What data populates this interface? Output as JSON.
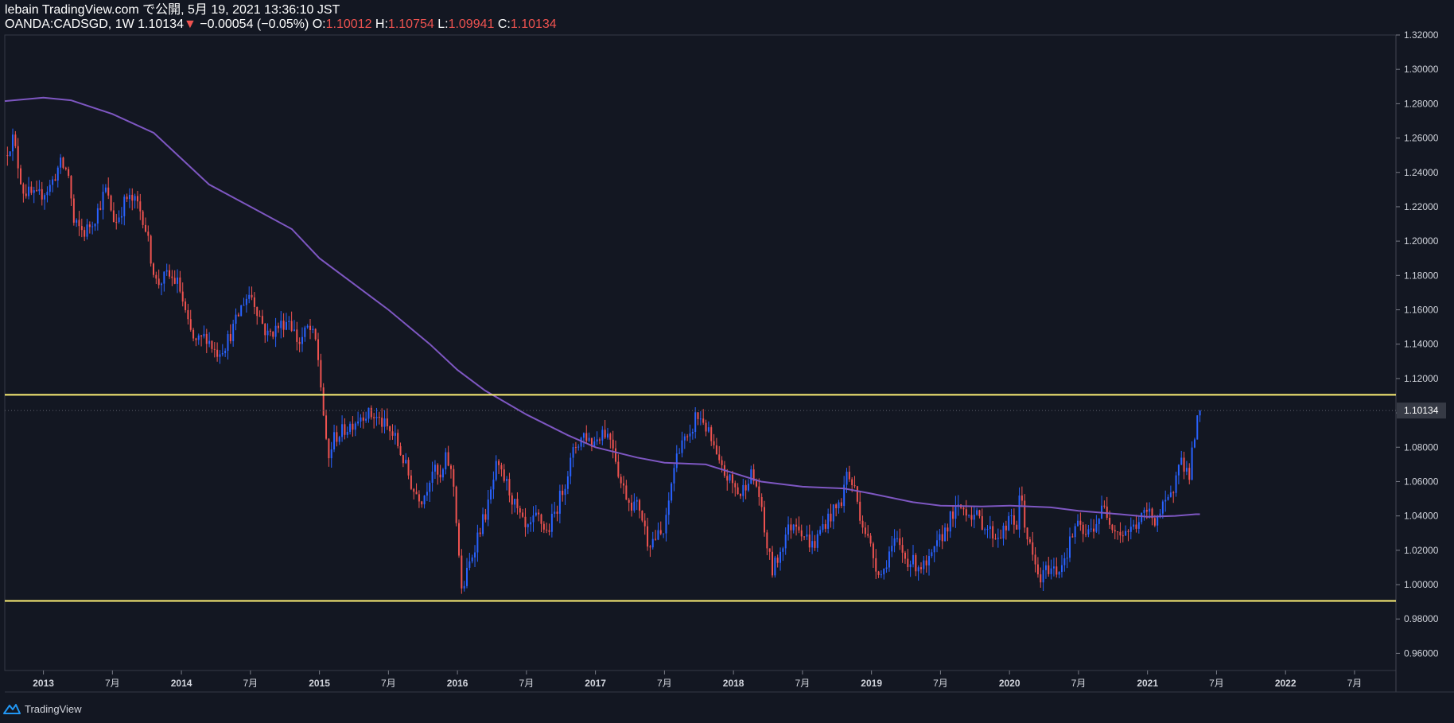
{
  "header": {
    "publisher": "lebain TradingView.com で公開, 5月 19, 2021 13:36:10 JST",
    "symbol": "OANDA:CADSGD, 1W",
    "last": "1.10134",
    "change_arrow": "▼",
    "change": "−0.00054 (−0.05%)",
    "o_label": "O:",
    "o_value": "1.10012",
    "h_label": "H:",
    "h_value": "1.10754",
    "l_label": "L:",
    "l_value": "1.09941",
    "c_label": "C:",
    "c_value": "1.10134"
  },
  "footer": {
    "brand": "TradingView"
  },
  "colors": {
    "background": "#131722",
    "up": "#2962ff",
    "down": "#ef5350",
    "ma": "#7e57c2",
    "level": "#fff176",
    "axis": "#363a45",
    "text": "#d1d4dc"
  },
  "chart_data": {
    "type": "candlestick",
    "symbol": "OANDA:CADSGD",
    "interval": "1W",
    "y_axis": {
      "min": 0.95,
      "max": 1.32,
      "position": "right",
      "ticks": [
        "0.96000",
        "0.98000",
        "1.00000",
        "1.02000",
        "1.04000",
        "1.06000",
        "1.08000",
        "1.10000",
        "1.12000",
        "1.14000",
        "1.16000",
        "1.18000",
        "1.20000",
        "1.22000",
        "1.24000",
        "1.26000",
        "1.28000",
        "1.30000",
        "1.32000"
      ],
      "last_price_label": "1.10134"
    },
    "x_axis": {
      "min": 2012.72,
      "max": 2022.8,
      "ticks": [
        {
          "t": 2013.0,
          "label": "2013"
        },
        {
          "t": 2013.5,
          "label": "7月"
        },
        {
          "t": 2014.0,
          "label": "2014"
        },
        {
          "t": 2014.5,
          "label": "7月"
        },
        {
          "t": 2015.0,
          "label": "2015"
        },
        {
          "t": 2015.5,
          "label": "7月"
        },
        {
          "t": 2016.0,
          "label": "2016"
        },
        {
          "t": 2016.5,
          "label": "7月"
        },
        {
          "t": 2017.0,
          "label": "2017"
        },
        {
          "t": 2017.5,
          "label": "7月"
        },
        {
          "t": 2018.0,
          "label": "2018"
        },
        {
          "t": 2018.5,
          "label": "7月"
        },
        {
          "t": 2019.0,
          "label": "2019"
        },
        {
          "t": 2019.5,
          "label": "7月"
        },
        {
          "t": 2020.0,
          "label": "2020"
        },
        {
          "t": 2020.5,
          "label": "7月"
        },
        {
          "t": 2021.0,
          "label": "2021"
        },
        {
          "t": 2021.5,
          "label": "7月"
        },
        {
          "t": 2022.0,
          "label": "2022"
        },
        {
          "t": 2022.5,
          "label": "7月"
        }
      ]
    },
    "horizontal_levels": [
      1.1105,
      0.9905
    ],
    "price_path": [
      [
        2012.72,
        1.25
      ],
      [
        2012.78,
        1.26
      ],
      [
        2012.85,
        1.23
      ],
      [
        2012.95,
        1.225
      ],
      [
        2013.05,
        1.232
      ],
      [
        2013.12,
        1.245
      ],
      [
        2013.18,
        1.24
      ],
      [
        2013.22,
        1.21
      ],
      [
        2013.3,
        1.205
      ],
      [
        2013.38,
        1.215
      ],
      [
        2013.45,
        1.23
      ],
      [
        2013.52,
        1.21
      ],
      [
        2013.6,
        1.225
      ],
      [
        2013.68,
        1.222
      ],
      [
        2013.73,
        1.212
      ],
      [
        2013.78,
        1.19
      ],
      [
        2013.82,
        1.175
      ],
      [
        2013.9,
        1.18
      ],
      [
        2013.98,
        1.175
      ],
      [
        2014.05,
        1.15
      ],
      [
        2014.1,
        1.14
      ],
      [
        2014.18,
        1.145
      ],
      [
        2014.25,
        1.135
      ],
      [
        2014.32,
        1.14
      ],
      [
        2014.38,
        1.15
      ],
      [
        2014.45,
        1.165
      ],
      [
        2014.5,
        1.17
      ],
      [
        2014.55,
        1.16
      ],
      [
        2014.62,
        1.145
      ],
      [
        2014.7,
        1.15
      ],
      [
        2014.78,
        1.155
      ],
      [
        2014.85,
        1.14
      ],
      [
        2014.92,
        1.15
      ],
      [
        2014.98,
        1.14
      ],
      [
        2015.02,
        1.108
      ],
      [
        2015.06,
        1.07
      ],
      [
        2015.1,
        1.085
      ],
      [
        2015.18,
        1.09
      ],
      [
        2015.25,
        1.095
      ],
      [
        2015.32,
        1.1
      ],
      [
        2015.4,
        1.098
      ],
      [
        2015.48,
        1.092
      ],
      [
        2015.55,
        1.085
      ],
      [
        2015.62,
        1.07
      ],
      [
        2015.68,
        1.055
      ],
      [
        2015.75,
        1.05
      ],
      [
        2015.82,
        1.068
      ],
      [
        2015.88,
        1.06
      ],
      [
        2015.92,
        1.075
      ],
      [
        2015.97,
        1.06
      ],
      [
        2016.0,
        1.03
      ],
      [
        2016.03,
        0.995
      ],
      [
        2016.08,
        1.01
      ],
      [
        2016.15,
        1.03
      ],
      [
        2016.22,
        1.045
      ],
      [
        2016.28,
        1.068
      ],
      [
        2016.35,
        1.06
      ],
      [
        2016.42,
        1.045
      ],
      [
        2016.5,
        1.03
      ],
      [
        2016.58,
        1.04
      ],
      [
        2016.65,
        1.03
      ],
      [
        2016.72,
        1.045
      ],
      [
        2016.78,
        1.06
      ],
      [
        2016.85,
        1.08
      ],
      [
        2016.92,
        1.088
      ],
      [
        2016.98,
        1.082
      ],
      [
        2017.05,
        1.09
      ],
      [
        2017.12,
        1.085
      ],
      [
        2017.18,
        1.06
      ],
      [
        2017.25,
        1.048
      ],
      [
        2017.32,
        1.045
      ],
      [
        2017.38,
        1.025
      ],
      [
        2017.45,
        1.028
      ],
      [
        2017.5,
        1.03
      ],
      [
        2017.56,
        1.065
      ],
      [
        2017.62,
        1.085
      ],
      [
        2017.68,
        1.082
      ],
      [
        2017.72,
        1.098
      ],
      [
        2017.78,
        1.096
      ],
      [
        2017.84,
        1.083
      ],
      [
        2017.9,
        1.068
      ],
      [
        2017.98,
        1.06
      ],
      [
        2018.05,
        1.052
      ],
      [
        2018.12,
        1.065
      ],
      [
        2018.18,
        1.055
      ],
      [
        2018.22,
        1.032
      ],
      [
        2018.28,
        1.008
      ],
      [
        2018.32,
        1.015
      ],
      [
        2018.38,
        1.03
      ],
      [
        2018.45,
        1.038
      ],
      [
        2018.52,
        1.028
      ],
      [
        2018.58,
        1.022
      ],
      [
        2018.65,
        1.035
      ],
      [
        2018.72,
        1.042
      ],
      [
        2018.78,
        1.048
      ],
      [
        2018.82,
        1.065
      ],
      [
        2018.88,
        1.055
      ],
      [
        2018.92,
        1.04
      ],
      [
        2018.98,
        1.025
      ],
      [
        2019.03,
        1.012
      ],
      [
        2019.08,
        1.005
      ],
      [
        2019.12,
        1.018
      ],
      [
        2019.18,
        1.025
      ],
      [
        2019.25,
        1.015
      ],
      [
        2019.32,
        1.012
      ],
      [
        2019.4,
        1.01
      ],
      [
        2019.45,
        1.018
      ],
      [
        2019.52,
        1.03
      ],
      [
        2019.58,
        1.04
      ],
      [
        2019.65,
        1.045
      ],
      [
        2019.72,
        1.042
      ],
      [
        2019.78,
        1.038
      ],
      [
        2019.85,
        1.032
      ],
      [
        2019.9,
        1.028
      ],
      [
        2019.97,
        1.032
      ],
      [
        2020.02,
        1.04
      ],
      [
        2020.05,
        1.032
      ],
      [
        2020.08,
        1.055
      ],
      [
        2020.12,
        1.03
      ],
      [
        2020.18,
        1.012
      ],
      [
        2020.22,
        1.002
      ],
      [
        2020.28,
        1.01
      ],
      [
        2020.35,
        1.008
      ],
      [
        2020.42,
        1.02
      ],
      [
        2020.48,
        1.035
      ],
      [
        2020.55,
        1.028
      ],
      [
        2020.62,
        1.035
      ],
      [
        2020.68,
        1.045
      ],
      [
        2020.75,
        1.035
      ],
      [
        2020.8,
        1.03
      ],
      [
        2020.88,
        1.032
      ],
      [
        2020.95,
        1.038
      ],
      [
        2021.0,
        1.043
      ],
      [
        2021.05,
        1.038
      ],
      [
        2021.12,
        1.045
      ],
      [
        2021.18,
        1.052
      ],
      [
        2021.22,
        1.075
      ],
      [
        2021.26,
        1.07
      ],
      [
        2021.3,
        1.063
      ],
      [
        2021.33,
        1.08
      ],
      [
        2021.36,
        1.095
      ],
      [
        2021.38,
        1.101
      ]
    ],
    "moving_average": [
      [
        2012.72,
        1.2815
      ],
      [
        2013.0,
        1.2835
      ],
      [
        2013.2,
        1.282
      ],
      [
        2013.5,
        1.274
      ],
      [
        2013.8,
        1.263
      ],
      [
        2014.0,
        1.248
      ],
      [
        2014.2,
        1.233
      ],
      [
        2014.5,
        1.22
      ],
      [
        2014.8,
        1.207
      ],
      [
        2015.0,
        1.19
      ],
      [
        2015.3,
        1.172
      ],
      [
        2015.5,
        1.16
      ],
      [
        2015.8,
        1.14
      ],
      [
        2016.0,
        1.125
      ],
      [
        2016.2,
        1.113
      ],
      [
        2016.5,
        1.099
      ],
      [
        2016.8,
        1.087
      ],
      [
        2017.0,
        1.08
      ],
      [
        2017.3,
        1.074
      ],
      [
        2017.5,
        1.071
      ],
      [
        2017.8,
        1.07
      ],
      [
        2018.0,
        1.065
      ],
      [
        2018.2,
        1.06
      ],
      [
        2018.5,
        1.057
      ],
      [
        2018.8,
        1.056
      ],
      [
        2019.0,
        1.053
      ],
      [
        2019.3,
        1.048
      ],
      [
        2019.5,
        1.046
      ],
      [
        2019.8,
        1.0455
      ],
      [
        2020.0,
        1.046
      ],
      [
        2020.3,
        1.045
      ],
      [
        2020.5,
        1.043
      ],
      [
        2020.8,
        1.041
      ],
      [
        2021.0,
        1.0395
      ],
      [
        2021.2,
        1.04
      ],
      [
        2021.35,
        1.041
      ],
      [
        2021.38,
        1.041
      ]
    ]
  }
}
